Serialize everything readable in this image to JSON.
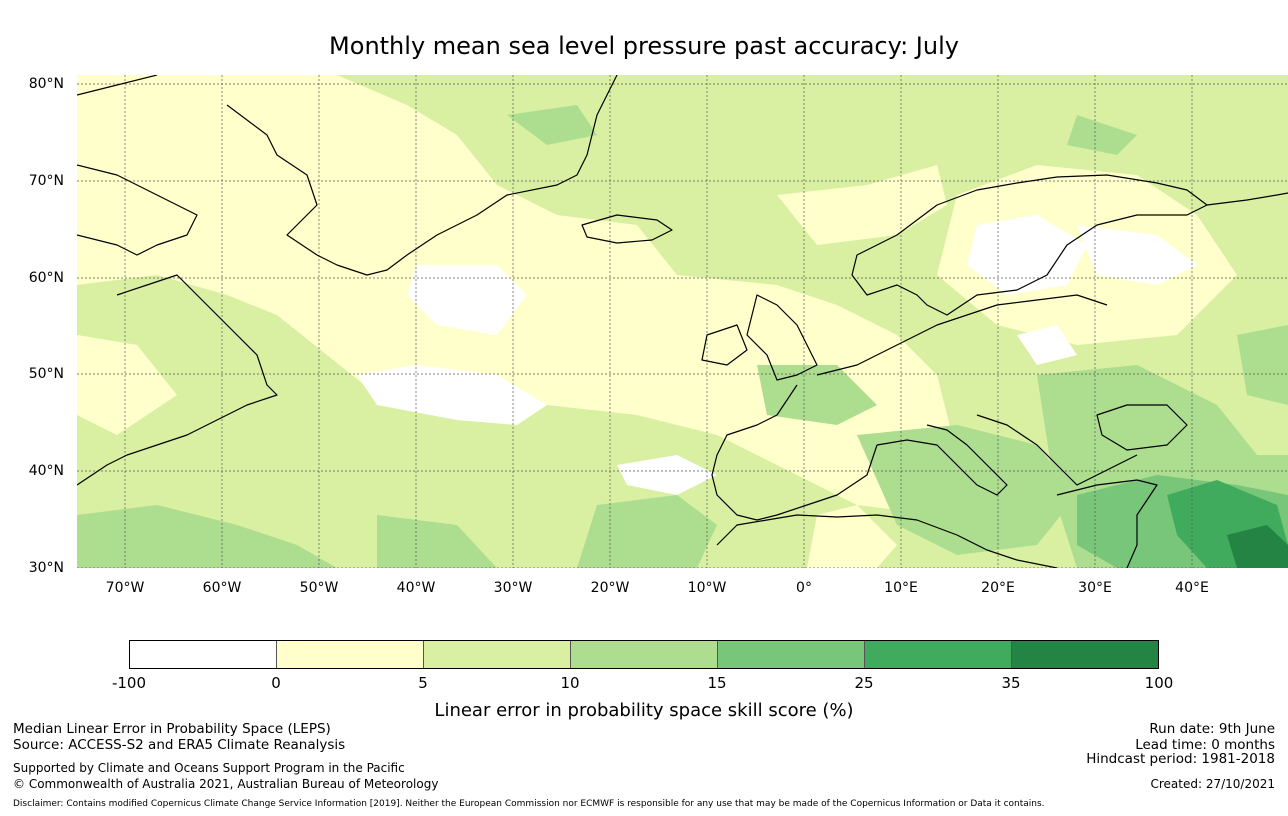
{
  "title": "Monthly mean sea level pressure past accuracy: July",
  "map": {
    "lat_labels": [
      "80°N",
      "70°N",
      "60°N",
      "50°N",
      "40°N",
      "30°N"
    ],
    "lon_labels": [
      "70°W",
      "60°W",
      "50°W",
      "40°W",
      "30°W",
      "20°W",
      "10°W",
      "0°",
      "10°E",
      "20°E",
      "30°E",
      "40°E"
    ],
    "lat_range": [
      30,
      81
    ],
    "lon_range": [
      -75,
      50
    ]
  },
  "colorbar": {
    "ticks": [
      "-100",
      "0",
      "5",
      "10",
      "15",
      "25",
      "35",
      "100"
    ],
    "colors": [
      "#ffffff",
      "#ffffcc",
      "#d9f0a3",
      "#addd8e",
      "#78c679",
      "#41ab5d",
      "#238443"
    ],
    "label": "Linear error in probability space skill score (%)"
  },
  "footer": {
    "left": {
      "line1": "Median Linear Error in Probability Space (LEPS)",
      "line2": "Source: ACCESS-S2 and ERA5 Climate Reanalysis",
      "line3": "Supported by Climate and Oceans Support Program in the Pacific",
      "line4": "© Commonwealth of Australia 2021, Australian Bureau of Meteorology"
    },
    "right": {
      "run_date": "Run date: 9th June",
      "lead_time": "Lead time: 0 months",
      "hindcast": "Hindcast period: 1981-2018",
      "created": "Created: 27/10/2021"
    },
    "disclaimer": "Disclaimer: Contains modified Copernicus Climate Change Service Information [2019]. Neither the European Commission nor ECMWF is responsible for any use that may be made of the Copernicus Information or Data it contains."
  }
}
